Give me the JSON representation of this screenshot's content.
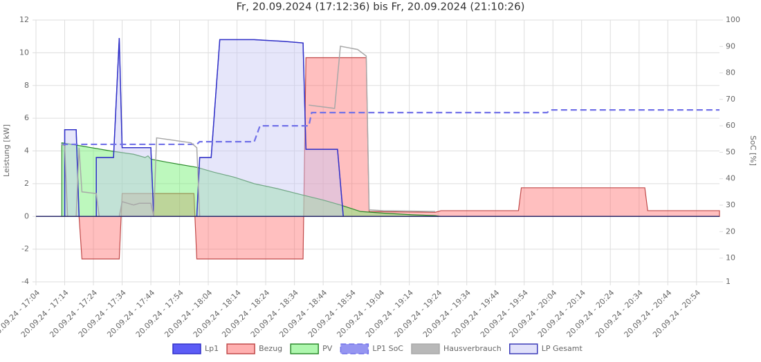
{
  "chart_data": {
    "type": "line",
    "title": "Fr, 20.09.2024 (17:12:36) bis Fr, 20.09.2024 (21:10:26)",
    "y_label": "Leistung [kW]",
    "y2_label": "SoC [%]",
    "grid": true,
    "legend": "bottom",
    "xlim": [
      1024,
      1262
    ],
    "xticks": [
      {
        "value": 1024,
        "label": "20.09.24 - 17:04"
      },
      {
        "value": 1034,
        "label": "20.09.24 - 17:14"
      },
      {
        "value": 1044,
        "label": "20.09.24 - 17:24"
      },
      {
        "value": 1054,
        "label": "20.09.24 - 17:34"
      },
      {
        "value": 1064,
        "label": "20.09.24 - 17:44"
      },
      {
        "value": 1074,
        "label": "20.09.24 - 17:54"
      },
      {
        "value": 1084,
        "label": "20.09.24 - 18:04"
      },
      {
        "value": 1094,
        "label": "20.09.24 - 18:14"
      },
      {
        "value": 1104,
        "label": "20.09.24 - 18:24"
      },
      {
        "value": 1114,
        "label": "20.09.24 - 18:34"
      },
      {
        "value": 1124,
        "label": "20.09.24 - 18:44"
      },
      {
        "value": 1134,
        "label": "20.09.24 - 18:54"
      },
      {
        "value": 1144,
        "label": "20.09.24 - 19:04"
      },
      {
        "value": 1154,
        "label": "20.09.24 - 19:14"
      },
      {
        "value": 1164,
        "label": "20.09.24 - 19:24"
      },
      {
        "value": 1174,
        "label": "20.09.24 - 19:34"
      },
      {
        "value": 1184,
        "label": "20.09.24 - 19:44"
      },
      {
        "value": 1194,
        "label": "20.09.24 - 19:54"
      },
      {
        "value": 1204,
        "label": "20.09.24 - 20:04"
      },
      {
        "value": 1214,
        "label": "20.09.24 - 20:14"
      },
      {
        "value": 1224,
        "label": "20.09.24 - 20:24"
      },
      {
        "value": 1234,
        "label": "20.09.24 - 20:34"
      },
      {
        "value": 1244,
        "label": "20.09.24 - 20:44"
      },
      {
        "value": 1254,
        "label": "20.09.24 - 20:54"
      }
    ],
    "ylim": [
      -4,
      12
    ],
    "yticks": [
      -4,
      -2,
      0,
      2,
      4,
      6,
      8,
      10,
      12
    ],
    "y2lim": [
      1,
      100
    ],
    "y2ticks": [
      1,
      10,
      20,
      30,
      40,
      50,
      60,
      70,
      80,
      90,
      100
    ],
    "series": [
      {
        "name": "Lp1",
        "kind": "line",
        "color": "#3030c8",
        "fill": "#4a4af5",
        "x": [
          1033,
          1034,
          1034,
          1038,
          1039,
          1045,
          1045,
          1051,
          1053,
          1054,
          1064,
          1065,
          1080,
          1081,
          1085,
          1088,
          1100,
          1110,
          1117,
          1118,
          1129,
          1131,
          1262
        ],
        "values": [
          0,
          0,
          5.3,
          5.3,
          0,
          0,
          3.6,
          3.6,
          10.9,
          4.2,
          4.2,
          0,
          0,
          3.6,
          3.6,
          10.8,
          10.8,
          10.7,
          10.6,
          4.1,
          4.1,
          0,
          0
        ]
      },
      {
        "name": "Bezug",
        "kind": "area",
        "color": "#c04848",
        "fill": "#ff7070",
        "x": [
          1033,
          1039,
          1040,
          1053,
          1054,
          1079,
          1080,
          1117,
          1118,
          1139,
          1140,
          1163,
          1165,
          1192,
          1193,
          1236,
          1237,
          1262
        ],
        "values": [
          0,
          0,
          -2.6,
          -2.6,
          1.4,
          1.4,
          -2.6,
          -2.6,
          9.7,
          9.7,
          0.3,
          0.25,
          0.35,
          0.35,
          1.75,
          1.75,
          0.35,
          0.35
        ]
      },
      {
        "name": "PV",
        "kind": "area",
        "color": "#2a8a2a",
        "fill": "#6cf06c",
        "x": [
          1033,
          1040,
          1050,
          1058,
          1062,
          1063,
          1064,
          1070,
          1080,
          1086,
          1093,
          1100,
          1108,
          1117,
          1124,
          1130,
          1137,
          1145,
          1155,
          1163,
          1165,
          1262
        ],
        "values": [
          4.5,
          4.3,
          4.0,
          3.8,
          3.6,
          3.7,
          3.5,
          3.3,
          3.0,
          2.7,
          2.4,
          2.0,
          1.7,
          1.3,
          1.0,
          0.7,
          0.3,
          0.2,
          0.1,
          0.05,
          0,
          0
        ]
      },
      {
        "name": "LP1 SoC",
        "kind": "dashed",
        "axis": "y2",
        "color": "#7070e8",
        "fill": "#8a8af0",
        "x": [
          1033,
          1080,
          1081,
          1100,
          1102,
          1119,
          1120,
          1202,
          1203,
          1262
        ],
        "values": [
          53,
          53,
          54,
          54,
          60,
          60,
          65,
          65,
          66,
          66
        ]
      },
      {
        "name": "Hausverbrauch",
        "kind": "line",
        "color": "#a8a8a8",
        "fill": "#b0b0b0",
        "x": [
          1033,
          1034,
          1035,
          1038,
          1039,
          1040,
          1045,
          1046,
          1053,
          1054,
          1058,
          1060,
          1064,
          1065,
          1066,
          1078,
          1080,
          1081,
          1085,
          1100,
          1119,
          1128,
          1130,
          1136,
          1139,
          1140,
          1145,
          1163
        ],
        "values": [
          4.4,
          4.3,
          0,
          0,
          4.2,
          1.5,
          1.4,
          0,
          0,
          0.9,
          0.7,
          0.8,
          0.8,
          0,
          4.8,
          4.5,
          4.2,
          0,
          0,
          null,
          6.8,
          6.6,
          10.4,
          10.2,
          9.8,
          0.4,
          0.35,
          0.3
        ]
      },
      {
        "name": "LP Gesamt",
        "kind": "area",
        "color": "#3a3ab8",
        "fill": "#c8c8f5",
        "x": [
          1033,
          1034,
          1034,
          1038,
          1039,
          1045,
          1045,
          1051,
          1053,
          1054,
          1064,
          1065,
          1080,
          1081,
          1085,
          1088,
          1100,
          1110,
          1117,
          1118,
          1129,
          1131,
          1262
        ],
        "values": [
          0,
          0,
          5.3,
          5.3,
          0,
          0,
          3.6,
          3.6,
          10.9,
          4.2,
          4.2,
          0,
          0,
          3.6,
          3.6,
          10.8,
          10.8,
          10.7,
          10.6,
          4.1,
          4.1,
          0,
          0
        ]
      }
    ]
  }
}
